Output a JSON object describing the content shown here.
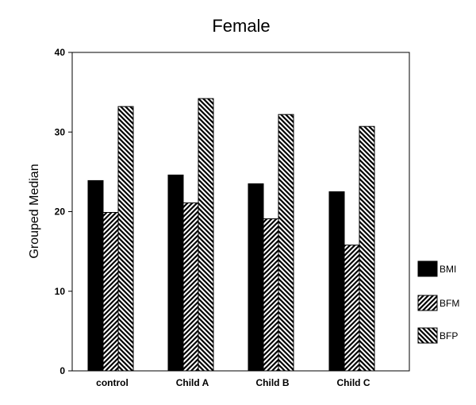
{
  "chart_data": {
    "type": "bar",
    "title": "Female",
    "xlabel": "",
    "ylabel": "Grouped Median",
    "ylim": [
      0,
      40
    ],
    "yticks": [
      0,
      10,
      20,
      30,
      40
    ],
    "categories": [
      "control",
      "Child A",
      "Child B",
      "Child C"
    ],
    "series": [
      {
        "name": "BMI",
        "values": [
          23.9,
          24.6,
          23.5,
          22.5
        ],
        "pattern": "solid",
        "color": "#000000"
      },
      {
        "name": "BFM",
        "values": [
          19.9,
          21.1,
          19.1,
          15.8
        ],
        "pattern": "hatch-down",
        "color": "#000000"
      },
      {
        "name": "BFP",
        "values": [
          33.2,
          34.2,
          32.2,
          30.7
        ],
        "pattern": "hatch-up",
        "color": "#000000"
      }
    ],
    "legend_position": "right",
    "grid": false
  }
}
